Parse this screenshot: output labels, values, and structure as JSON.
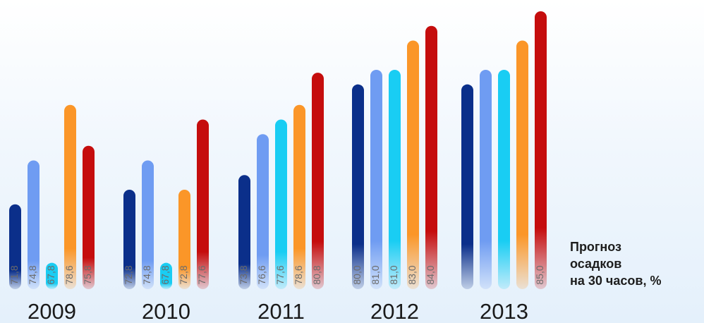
{
  "chart_data": {
    "type": "bar",
    "categories": [
      "2009",
      "2010",
      "2011",
      "2012",
      "2013"
    ],
    "series": [
      {
        "values": [
          71.8,
          72.8,
          73.8,
          80.0,
          null
        ],
        "color": "#0b2f8a"
      },
      {
        "values": [
          74.8,
          74.8,
          76.6,
          81.0,
          null
        ],
        "color": "#6f9cf2"
      },
      {
        "values": [
          67.8,
          67.8,
          77.6,
          81.0,
          null
        ],
        "color": "#19cdf3"
      },
      {
        "values": [
          78.6,
          72.8,
          78.6,
          83.0,
          null
        ],
        "color": "#fb9628"
      },
      {
        "values": [
          75.8,
          77.6,
          80.8,
          84.0,
          85.0
        ],
        "color": "#c50d0d"
      }
    ],
    "data_labels": [
      [
        "71,8",
        "74,8",
        "67,8",
        "78,6",
        "75,8"
      ],
      [
        "72,8",
        "74,8",
        "67,8",
        "72,8",
        "77,6"
      ],
      [
        "73,8",
        "76,6",
        "77,6",
        "78,6",
        "80,8"
      ],
      [
        "80,0",
        "81,0",
        "81,0",
        "83,0",
        "84,0"
      ],
      [
        "",
        "",
        "",
        "",
        "85,0"
      ]
    ],
    "ylim": [
      66,
      85
    ],
    "legend": [
      "Прогноз",
      "осадков",
      "на 30 часов, %"
    ],
    "grid": false
  }
}
